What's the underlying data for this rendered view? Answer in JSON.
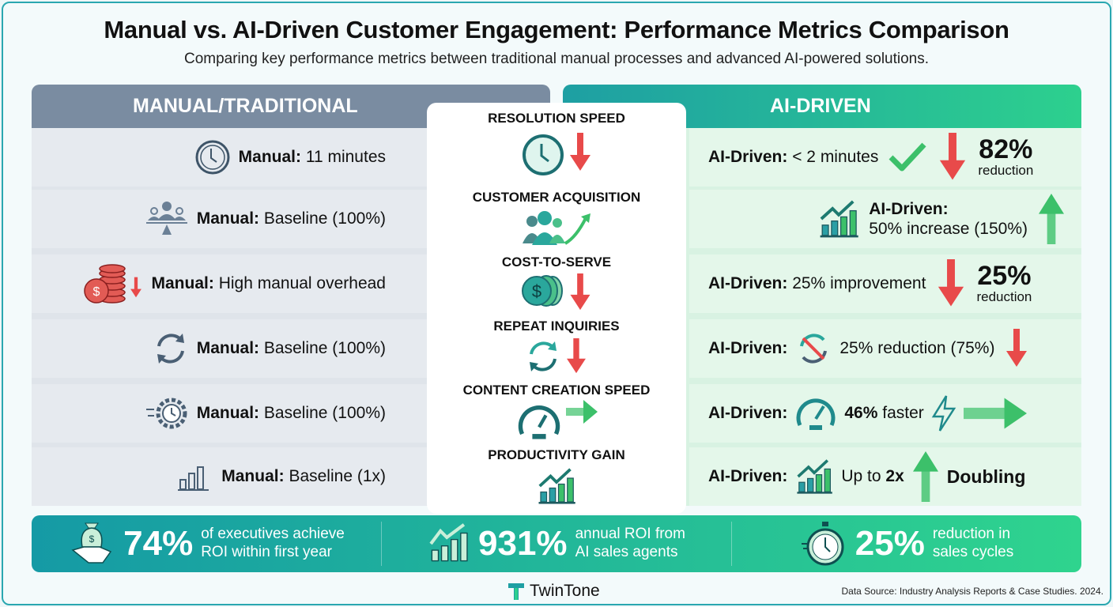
{
  "title": "Manual vs. AI-Driven Customer Engagement: Performance Metrics Comparison",
  "subtitle": "Comparing key performance metrics between traditional manual processes and advanced AI-powered solutions.",
  "left_header": "MANUAL/TRADITIONAL",
  "right_header": "AI-DRIVEN",
  "colors": {
    "manual": "#7a8ca1",
    "ai_start": "#1e9fa3",
    "ai_end": "#2dd08e",
    "down": "#e84a4a",
    "up": "#3cc06a"
  },
  "metrics": [
    {
      "name": "RESOLUTION SPEED",
      "manual_label": "Manual:",
      "manual_value": "11 minutes",
      "ai_label": "AI-Driven:",
      "ai_value": "< 2 minutes",
      "badge_value": "82%",
      "badge_text": "reduction",
      "icon": "clock-icon"
    },
    {
      "name": "CUSTOMER ACQUISITION",
      "manual_label": "Manual:",
      "manual_value": "Baseline (100%)",
      "ai_label": "AI-Driven:",
      "ai_value": "50% increase (150%)",
      "icon": "users-icon"
    },
    {
      "name": "COST-TO-SERVE",
      "manual_label": "Manual:",
      "manual_value": "High manual overhead",
      "ai_label": "AI-Driven:",
      "ai_value": "25% improvement",
      "badge_value": "25%",
      "badge_text": "reduction",
      "icon": "coins-icon"
    },
    {
      "name": "REPEAT INQUIRIES",
      "manual_label": "Manual:",
      "manual_value": "Baseline (100%)",
      "ai_label": "AI-Driven:",
      "ai_value": "25% reduction (75%)",
      "icon": "refresh-icon"
    },
    {
      "name": "CONTENT CREATION SPEED",
      "manual_label": "Manual:",
      "manual_value": "Baseline (100%)",
      "ai_label": "AI-Driven:",
      "ai_value_bold": "46%",
      "ai_value": "faster",
      "icon": "speedometer-icon"
    },
    {
      "name": "PRODUCTIVITY GAIN",
      "manual_label": "Manual:",
      "manual_value": "Baseline (1x)",
      "ai_label": "AI-Driven:",
      "ai_value": "Up to",
      "ai_value_bold": "2x",
      "badge_text": "Doubling",
      "icon": "bar-chart-icon"
    }
  ],
  "stats": [
    {
      "value": "74%",
      "line1": "of executives achieve",
      "line2": "ROI within first year",
      "icon": "money-handshake-icon"
    },
    {
      "value": "931%",
      "line1": "annual ROI from",
      "line2": "AI sales agents",
      "icon": "growth-chart-icon"
    },
    {
      "value": "25%",
      "line1": "reduction in",
      "line2": "sales cycles",
      "icon": "stopwatch-icon"
    }
  ],
  "brand": "TwinTone",
  "source": "Data Source: Industry Analysis Reports & Case Studies. 2024."
}
